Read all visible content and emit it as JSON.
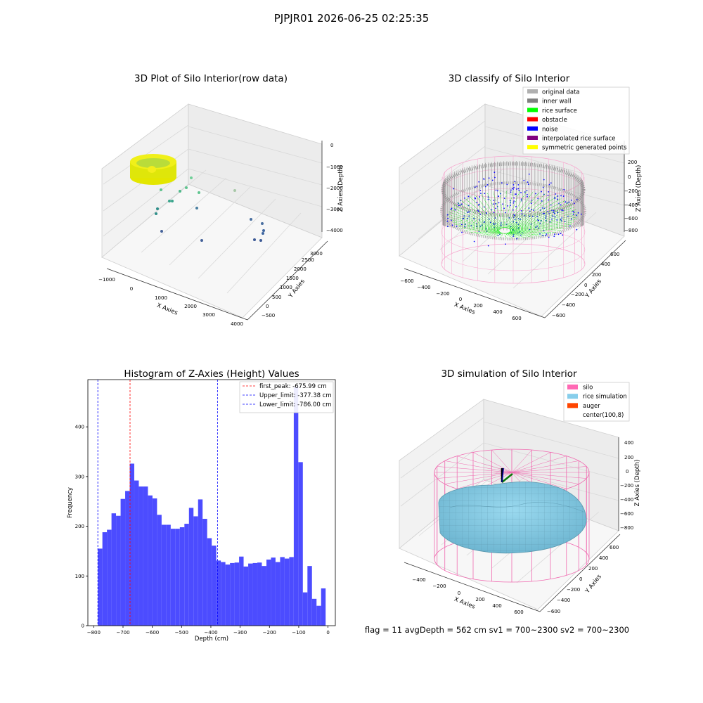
{
  "figure": {
    "suptitle": "PJPJR01 2026-06-25 02:25:35",
    "footer": "flag = 11   avgDepth = 562 cm  sv1 = 700~2300  sv2 = 700~2300"
  },
  "panels": {
    "raw": {
      "title": "3D Plot of Silo Interior(row data)",
      "xlabel": "X Axies",
      "ylabel": "Y Axies",
      "zlabel": "Z Axies (Depth)",
      "xticks": [
        "−1000",
        "0",
        "1000",
        "2000",
        "3000",
        "4000"
      ],
      "yticks": [
        "−500",
        "0",
        "500",
        "1000",
        "1500",
        "2000",
        "2500",
        "3000"
      ],
      "zticks": [
        "0",
        "−1000",
        "−2000",
        "−3000",
        "−4000"
      ]
    },
    "classify": {
      "title": "3D classify of Silo Interior",
      "xlabel": "X Axies",
      "ylabel": "Y Axies",
      "zlabel": "Z Axies (Depth)",
      "xticks": [
        "−600",
        "−400",
        "−200",
        "0",
        "200",
        "400",
        "600"
      ],
      "yticks": [
        "−600",
        "−400",
        "−200",
        "0",
        "200",
        "400",
        "600"
      ],
      "zticks": [
        "200",
        "0",
        "−200",
        "−400",
        "−600",
        "−800"
      ],
      "legend": [
        {
          "label": "original data",
          "color": "#b0b0b0"
        },
        {
          "label": "inner wall",
          "color": "#808080"
        },
        {
          "label": "rice surface",
          "color": "#00ff00"
        },
        {
          "label": "obstacle",
          "color": "#ff0000"
        },
        {
          "label": "noise",
          "color": "#0000ff"
        },
        {
          "label": "interpolated rice surface",
          "color": "#800080"
        },
        {
          "label": "symmetric generated points",
          "color": "#ffff00"
        }
      ]
    },
    "simulation": {
      "title": "3D simulation of Silo Interior",
      "xlabel": "X Axies",
      "ylabel": "Y Axies",
      "zlabel": "Z Axies (Depth)",
      "xticks": [
        "−400",
        "−200",
        "0",
        "200",
        "400",
        "600"
      ],
      "yticks": [
        "−600",
        "−400",
        "−200",
        "0",
        "200",
        "400",
        "600"
      ],
      "zticks": [
        "400",
        "200",
        "0",
        "−200",
        "−400",
        "−600",
        "−800"
      ],
      "legend": [
        {
          "label": "silo",
          "color": "#ff69b4"
        },
        {
          "label": "rice simulation",
          "color": "#87ceeb"
        },
        {
          "label": "auger",
          "color": "#ff4500"
        },
        {
          "label": "center(100,8)",
          "color": ""
        }
      ]
    }
  },
  "chart_data": [
    {
      "type": "scatter",
      "title": "3D Plot of Silo Interior(row data)",
      "xlabel": "X Axies",
      "ylabel": "Y Axies",
      "zlabel": "Z Axies (Depth)",
      "xlim": [
        -1000,
        4000
      ],
      "ylim": [
        -500,
        3000
      ],
      "zlim": [
        -4000,
        0
      ]
    },
    {
      "type": "scatter",
      "title": "3D classify of Silo Interior",
      "xlabel": "X Axies",
      "ylabel": "Y Axies",
      "zlabel": "Z Axies (Depth)",
      "series": [
        {
          "name": "original data"
        },
        {
          "name": "inner wall"
        },
        {
          "name": "rice surface"
        },
        {
          "name": "obstacle"
        },
        {
          "name": "noise"
        },
        {
          "name": "interpolated rice surface"
        },
        {
          "name": "symmetric generated points"
        }
      ],
      "legend": "top-right"
    },
    {
      "type": "bar",
      "title": "Histogram of Z-Axies (Height) Values",
      "xlabel": "Depth (cm)",
      "ylabel": "Frequency",
      "xlim": [
        -820,
        25
      ],
      "ylim": [
        0,
        495
      ],
      "xticks": [
        -800,
        -700,
        -600,
        -500,
        -400,
        -300,
        -200,
        -100,
        0
      ],
      "yticks": [
        0,
        100,
        200,
        300,
        400
      ],
      "bin_start": -786,
      "bin_width": 15.56,
      "values": [
        155,
        188,
        193,
        226,
        221,
        255,
        271,
        326,
        292,
        280,
        280,
        262,
        256,
        223,
        203,
        203,
        195,
        195,
        198,
        205,
        237,
        220,
        254,
        215,
        176,
        161,
        131,
        128,
        123,
        126,
        127,
        139,
        119,
        125,
        126,
        127,
        120,
        133,
        137,
        128,
        138,
        135,
        138,
        480,
        329,
        67,
        120,
        54,
        40,
        75
      ],
      "bar_color": "#0000ff",
      "vlines": [
        {
          "label": "first_peak: -675.99 cm",
          "x": -675.99,
          "color": "#ff0000"
        },
        {
          "label": "Upper_limit: -377.38 cm",
          "x": -377.38,
          "color": "#0000ff"
        },
        {
          "label": "Lower_limit: -786.00 cm",
          "x": -786.0,
          "color": "#0000ff"
        }
      ],
      "legend": "top-right"
    },
    {
      "type": "area",
      "title": "3D simulation of Silo Interior",
      "xlabel": "X Axies",
      "ylabel": "Y Axies",
      "zlabel": "Z Axies (Depth)",
      "series": [
        {
          "name": "silo"
        },
        {
          "name": "rice simulation"
        },
        {
          "name": "auger"
        },
        {
          "name": "center(100,8)"
        }
      ],
      "legend": "top-right"
    }
  ]
}
